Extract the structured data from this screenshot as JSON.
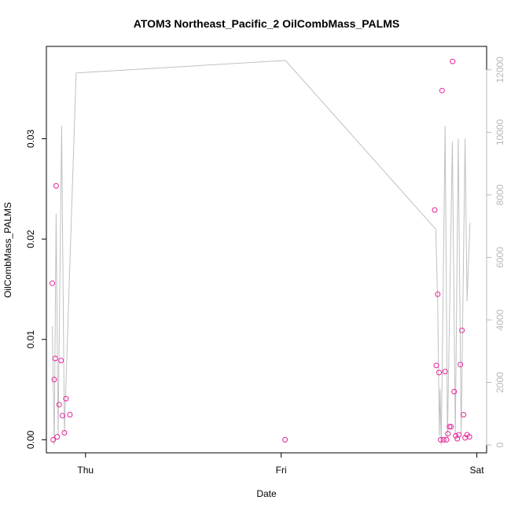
{
  "chart_data": {
    "type": "scatter",
    "title": "ATOM3 Northeast_Pacific_2 OilCombMass_PALMS",
    "xlabel": "Date",
    "ylabel": "OilCombMass_PALMS",
    "xlim": [
      -0.2,
      2.05
    ],
    "ylim": [
      -0.0013,
      0.0392
    ],
    "y2lim": [
      -250,
      12750
    ],
    "x_ticks": [
      {
        "value": 0,
        "label": "Thu"
      },
      {
        "value": 1,
        "label": "Fri"
      },
      {
        "value": 2,
        "label": "Sat"
      }
    ],
    "y_ticks": [
      {
        "value": 0,
        "label": "0.00"
      },
      {
        "value": 0.01,
        "label": "0.01"
      },
      {
        "value": 0.02,
        "label": "0.02"
      },
      {
        "value": 0.03,
        "label": "0.03"
      }
    ],
    "y2_ticks": [
      {
        "value": 0,
        "label": "0"
      },
      {
        "value": 2000,
        "label": "2000"
      },
      {
        "value": 4000,
        "label": "4000"
      },
      {
        "value": 6000,
        "label": "6000"
      },
      {
        "value": 8000,
        "label": "8000"
      },
      {
        "value": 10000,
        "label": "10000"
      },
      {
        "value": 12000,
        "label": "12000"
      }
    ],
    "colors": {
      "points": "#e8239a",
      "line": "#c0c0c0",
      "right_axis": "#b8b8b8"
    },
    "points": [
      {
        "x": -0.17,
        "y": 0.0156
      },
      {
        "x": -0.165,
        "y": 0.0
      },
      {
        "x": -0.16,
        "y": 0.006
      },
      {
        "x": -0.155,
        "y": 0.0081
      },
      {
        "x": -0.15,
        "y": 0.0253
      },
      {
        "x": -0.145,
        "y": 0.0003
      },
      {
        "x": -0.135,
        "y": 0.0035
      },
      {
        "x": -0.125,
        "y": 0.0079
      },
      {
        "x": -0.118,
        "y": 0.0024
      },
      {
        "x": -0.108,
        "y": 0.0007
      },
      {
        "x": -0.1,
        "y": 0.0041
      },
      {
        "x": -0.08,
        "y": 0.0025
      },
      {
        "x": 1.02,
        "y": 0.0
      },
      {
        "x": 1.785,
        "y": 0.0229
      },
      {
        "x": 1.793,
        "y": 0.0074
      },
      {
        "x": 1.8,
        "y": 0.0145
      },
      {
        "x": 1.807,
        "y": 0.0067
      },
      {
        "x": 1.815,
        "y": 0.0
      },
      {
        "x": 1.822,
        "y": 0.0348
      },
      {
        "x": 1.83,
        "y": 0.0
      },
      {
        "x": 1.838,
        "y": 0.0068
      },
      {
        "x": 1.845,
        "y": 0.0
      },
      {
        "x": 1.852,
        "y": 0.0006
      },
      {
        "x": 1.86,
        "y": 0.0013
      },
      {
        "x": 1.868,
        "y": 0.0013
      },
      {
        "x": 1.876,
        "y": 0.0377
      },
      {
        "x": 1.884,
        "y": 0.0048
      },
      {
        "x": 1.892,
        "y": 0.0004
      },
      {
        "x": 1.9,
        "y": 0.0001
      },
      {
        "x": 1.908,
        "y": 0.0005
      },
      {
        "x": 1.916,
        "y": 0.0075
      },
      {
        "x": 1.924,
        "y": 0.0109
      },
      {
        "x": 1.932,
        "y": 0.0025
      },
      {
        "x": 1.94,
        "y": 0.0002
      },
      {
        "x": 1.95,
        "y": 0.0005
      },
      {
        "x": 1.962,
        "y": 0.0003
      }
    ],
    "line": [
      {
        "x": -0.17,
        "y2": 3800
      },
      {
        "x": -0.16,
        "y2": 0
      },
      {
        "x": -0.15,
        "y2": 7400
      },
      {
        "x": -0.14,
        "y2": 300
      },
      {
        "x": -0.122,
        "y2": 10200
      },
      {
        "x": -0.108,
        "y2": 400
      },
      {
        "x": -0.048,
        "y2": 11900
      },
      {
        "x": 1.022,
        "y2": 12300
      },
      {
        "x": 1.79,
        "y2": 6900
      },
      {
        "x": 1.8,
        "y2": 4500
      },
      {
        "x": 1.808,
        "y2": 300
      },
      {
        "x": 1.812,
        "y2": 1800
      },
      {
        "x": 1.818,
        "y2": 0
      },
      {
        "x": 1.838,
        "y2": 10200
      },
      {
        "x": 1.85,
        "y2": 200
      },
      {
        "x": 1.875,
        "y2": 9700
      },
      {
        "x": 1.89,
        "y2": 300
      },
      {
        "x": 1.905,
        "y2": 9800
      },
      {
        "x": 1.92,
        "y2": 300
      },
      {
        "x": 1.94,
        "y2": 9800
      },
      {
        "x": 1.95,
        "y2": 4600
      },
      {
        "x": 1.965,
        "y2": 7100
      }
    ]
  }
}
